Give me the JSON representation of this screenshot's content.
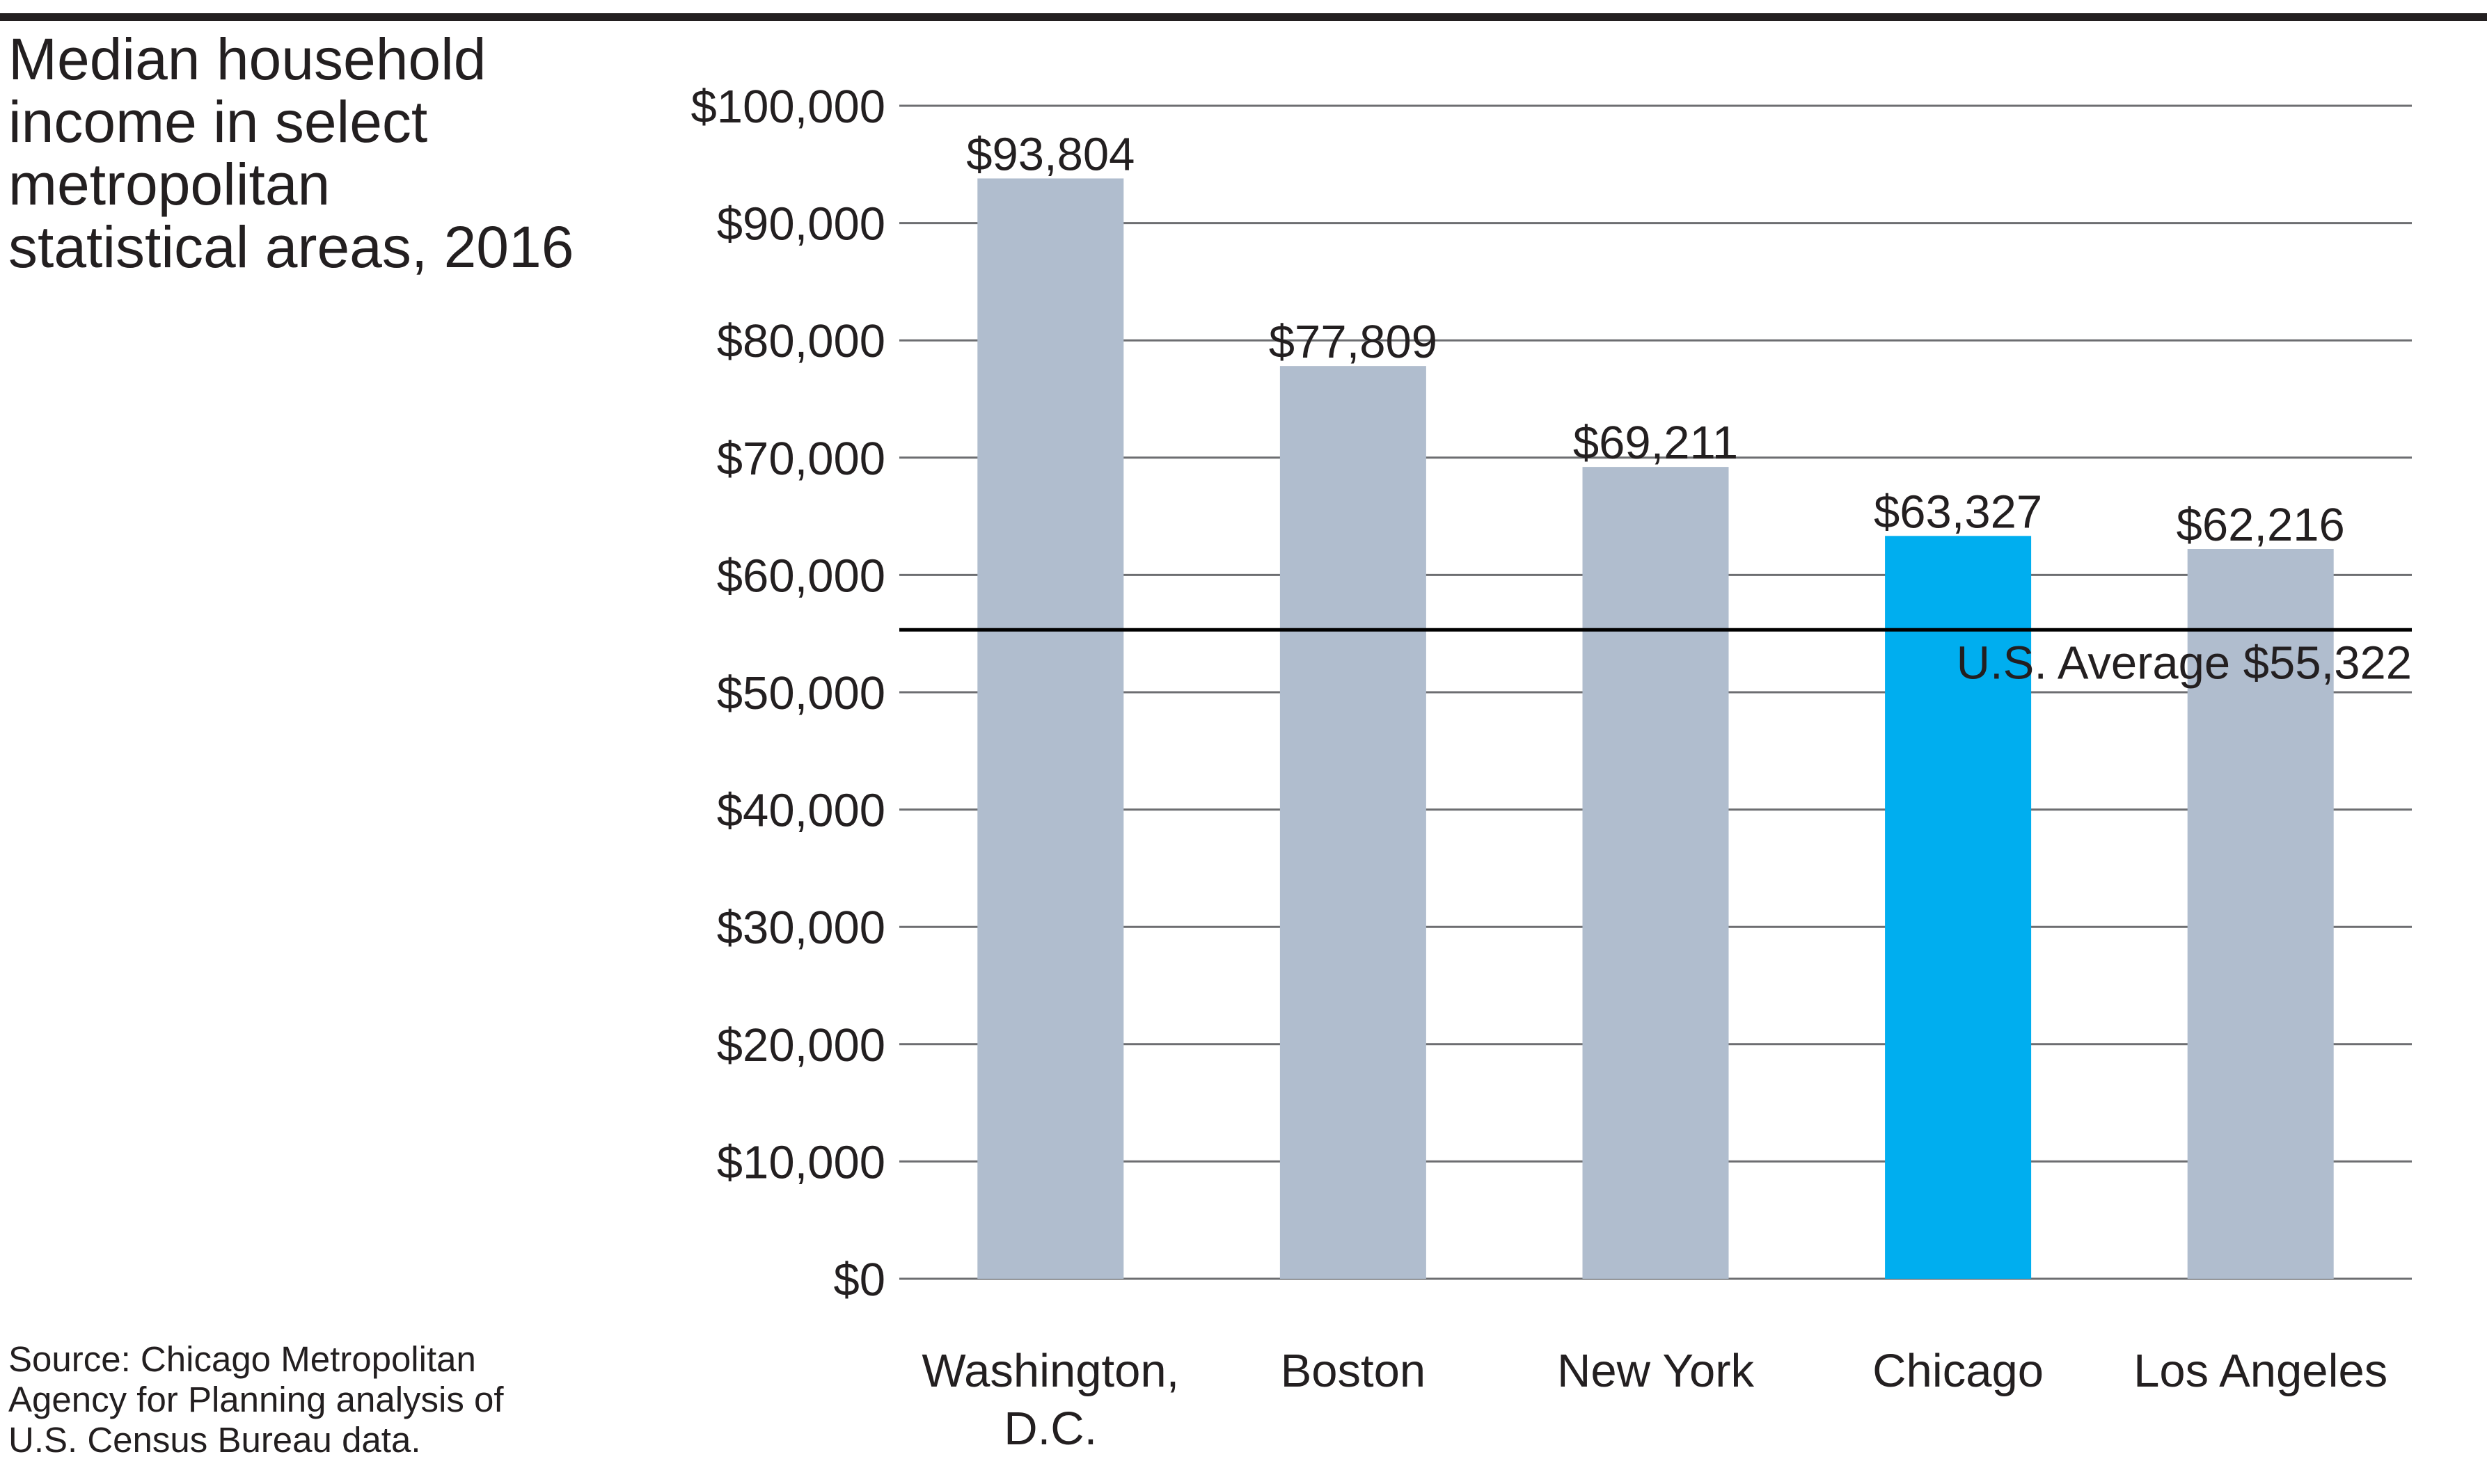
{
  "title": "Median household\nincome in select\nmetropolitan\nstatistical areas, 2016",
  "source": "Source: Chicago Metropolitan\nAgency for Planning analysis of\nU.S. Census Bureau data.",
  "colors": {
    "default_bar": "#b0bdce",
    "highlight_bar": "#00aeef",
    "gridline": "#6d6e71",
    "reference_line": "#000000",
    "text": "#231f20"
  },
  "chart_data": {
    "type": "bar",
    "categories": [
      [
        "Washington,",
        "D.C."
      ],
      [
        "Boston"
      ],
      [
        "New York"
      ],
      [
        "Chicago"
      ],
      [
        "Los Angeles"
      ]
    ],
    "values": [
      93804,
      77809,
      69211,
      63327,
      62216
    ],
    "data_labels": [
      "$93,804",
      "$77,809",
      "$69,211",
      "$63,327",
      "$62,216"
    ],
    "highlight_index": 3,
    "ylim": [
      0,
      100000
    ],
    "yticks": [
      0,
      10000,
      20000,
      30000,
      40000,
      50000,
      60000,
      70000,
      80000,
      90000,
      100000
    ],
    "ytick_labels": [
      "$0",
      "$10,000",
      "$20,000",
      "$30,000",
      "$40,000",
      "$50,000",
      "$60,000",
      "$70,000",
      "$80,000",
      "$90,000",
      "$100,000"
    ],
    "grid": true,
    "reference_line": {
      "value": 55322,
      "label": "U.S. Average $55,322"
    },
    "xlabel": "",
    "ylabel": ""
  }
}
